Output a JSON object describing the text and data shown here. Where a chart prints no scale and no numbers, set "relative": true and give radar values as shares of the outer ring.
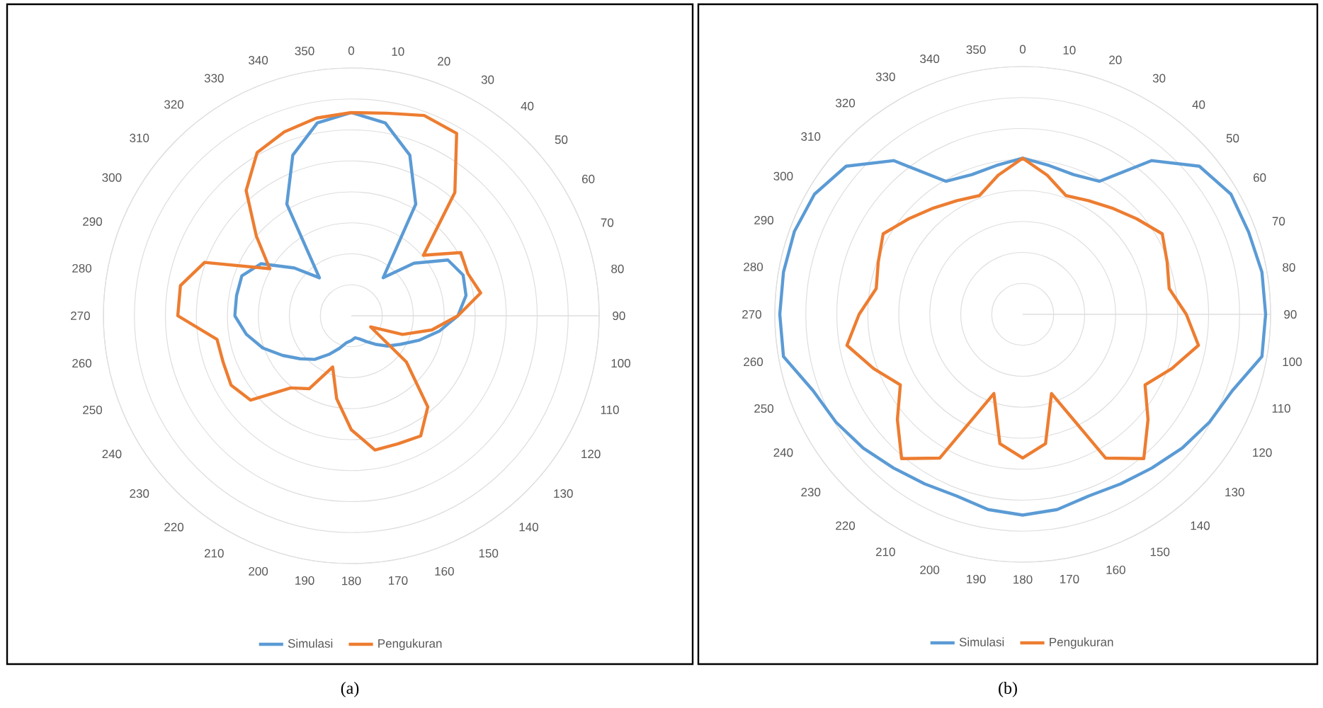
{
  "chart_data": [
    {
      "type": "radar",
      "relative": true,
      "grid": "y",
      "legend": "bottom",
      "categories": [
        "0",
        "10",
        "20",
        "30",
        "40",
        "50",
        "60",
        "70",
        "80",
        "90",
        "100",
        "110",
        "120",
        "130",
        "140",
        "150",
        "160",
        "170",
        "180",
        "190",
        "200",
        "210",
        "220",
        "230",
        "240",
        "250",
        "260",
        "270",
        "280",
        "290",
        "300",
        "310",
        "320",
        "330",
        "340",
        "350"
      ],
      "series": [
        {
          "name": "Simulasi",
          "color": "#5b9bd5",
          "values": [
            0.82,
            0.79,
            0.69,
            0.52,
            0.2,
            0.33,
            0.45,
            0.48,
            0.47,
            0.43,
            0.36,
            0.29,
            0.23,
            0.19,
            0.15,
            0.12,
            0.1,
            0.09,
            0.1,
            0.11,
            0.14,
            0.18,
            0.23,
            0.27,
            0.32,
            0.38,
            0.43,
            0.47,
            0.47,
            0.47,
            0.42,
            0.3,
            0.2,
            0.52,
            0.69,
            0.79
          ]
        },
        {
          "name": "Pengukuran",
          "color": "#ed7d31",
          "values": [
            0.82,
            0.83,
            0.86,
            0.85,
            0.65,
            0.38,
            0.51,
            0.5,
            0.53,
            0.43,
            0.33,
            0.22,
            0.09,
            0.29,
            0.48,
            0.56,
            0.55,
            0.55,
            0.46,
            0.34,
            0.22,
            0.34,
            0.38,
            0.53,
            0.56,
            0.55,
            0.55,
            0.7,
            0.7,
            0.63,
            0.38,
            0.5,
            0.66,
            0.76,
            0.79,
            0.81
          ]
        }
      ],
      "annotations": [
        "(a)"
      ]
    },
    {
      "type": "radar",
      "relative": true,
      "grid": "y",
      "legend": "bottom",
      "categories": [
        "0",
        "10",
        "20",
        "30",
        "40",
        "50",
        "60",
        "70",
        "80",
        "90",
        "100",
        "110",
        "120",
        "130",
        "140",
        "150",
        "160",
        "170",
        "180",
        "190",
        "200",
        "210",
        "220",
        "230",
        "240",
        "250",
        "260",
        "270",
        "280",
        "290",
        "300",
        "310",
        "320",
        "330",
        "340",
        "350"
      ],
      "series": [
        {
          "name": "Simulasi",
          "color": "#5b9bd5",
          "values": [
            0.63,
            0.61,
            0.6,
            0.62,
            0.81,
            0.93,
            0.97,
            0.97,
            0.98,
            0.98,
            0.98,
            0.9,
            0.87,
            0.84,
            0.81,
            0.79,
            0.78,
            0.8,
            0.81,
            0.8,
            0.78,
            0.79,
            0.81,
            0.84,
            0.87,
            0.9,
            0.98,
            0.98,
            0.98,
            0.98,
            0.97,
            0.93,
            0.81,
            0.62,
            0.6,
            0.61
          ]
        },
        {
          "name": "Pengukuran",
          "color": "#ed7d31",
          "values": [
            0.63,
            0.57,
            0.51,
            0.53,
            0.56,
            0.6,
            0.65,
            0.62,
            0.6,
            0.66,
            0.72,
            0.64,
            0.57,
            0.66,
            0.76,
            0.67,
            0.34,
            0.53,
            0.58,
            0.53,
            0.34,
            0.67,
            0.76,
            0.66,
            0.57,
            0.64,
            0.72,
            0.66,
            0.6,
            0.62,
            0.65,
            0.6,
            0.56,
            0.53,
            0.51,
            0.57
          ]
        }
      ],
      "annotations": [
        "(b)"
      ]
    }
  ]
}
